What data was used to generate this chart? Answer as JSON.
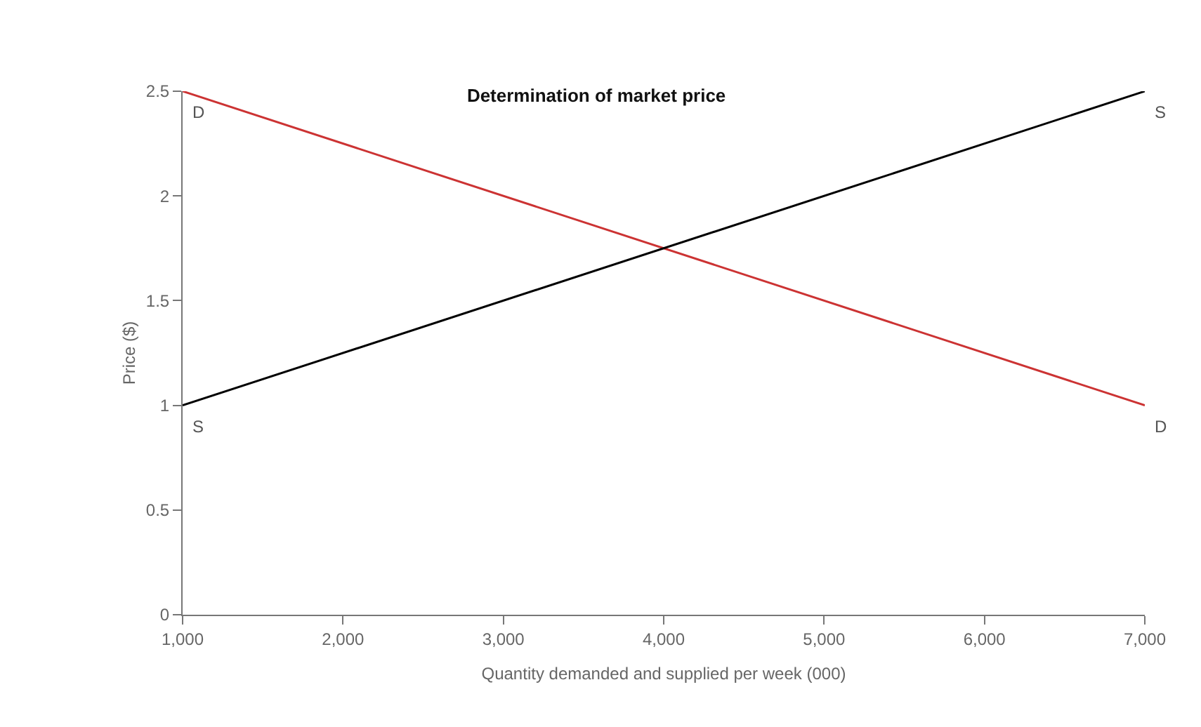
{
  "chart_data": {
    "type": "line",
    "title": "Determination of market price",
    "xlabel": "Quantity demanded and supplied per week (000)",
    "ylabel": "Price ($)",
    "x": [
      1000,
      7000
    ],
    "series": [
      {
        "name": "D",
        "color": "#cc3333",
        "values": [
          2.5,
          1.0
        ]
      },
      {
        "name": "S",
        "color": "#000000",
        "values": [
          1.0,
          2.5
        ]
      }
    ],
    "xlim": [
      1000,
      7000
    ],
    "xticks": [
      {
        "value": 1000,
        "label": "1,000"
      },
      {
        "value": 2000,
        "label": "2,000"
      },
      {
        "value": 3000,
        "label": "3,000"
      },
      {
        "value": 4000,
        "label": "4,000"
      },
      {
        "value": 5000,
        "label": "5,000"
      },
      {
        "value": 6000,
        "label": "6,000"
      },
      {
        "value": 7000,
        "label": "7,000"
      }
    ],
    "ylim": [
      0,
      2.5
    ],
    "yticks": [
      0,
      0.5,
      1,
      1.5,
      2,
      2.5
    ],
    "grid": false,
    "marker": "none",
    "line_style": "solid"
  }
}
